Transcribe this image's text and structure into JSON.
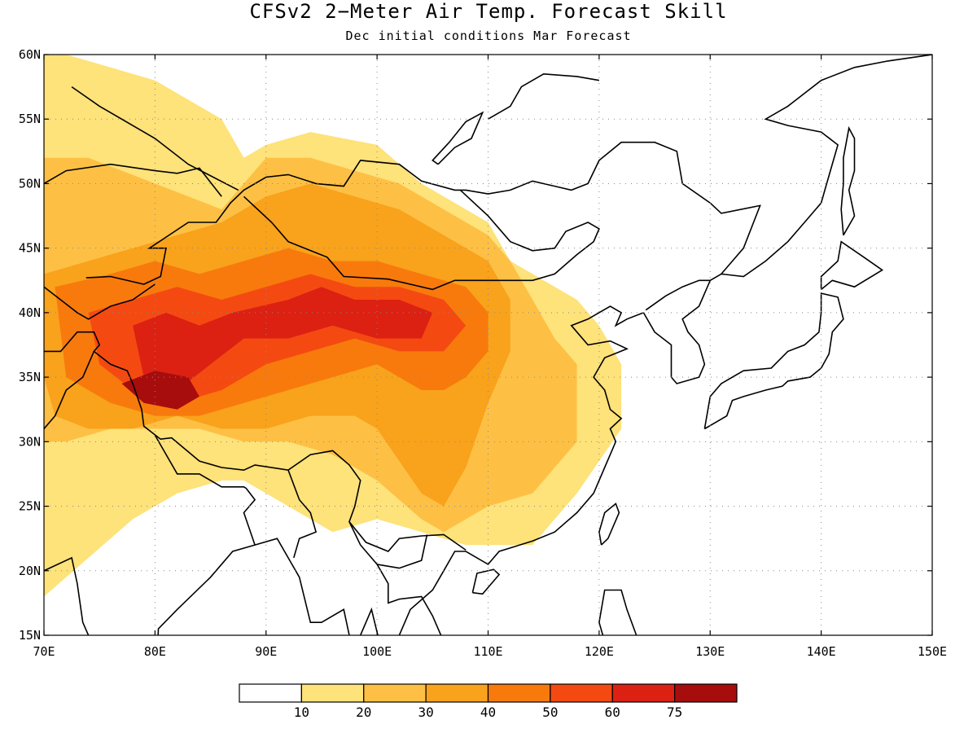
{
  "title": "CFSv2 2−Meter Air Temp. Forecast Skill",
  "subtitle": "Dec initial conditions  Mar Forecast",
  "map": {
    "lon_range": [
      70,
      150
    ],
    "lat_range": [
      15,
      60
    ],
    "lon_ticks": [
      "70E",
      "80E",
      "90E",
      "100E",
      "110E",
      "120E",
      "130E",
      "140E",
      "150E"
    ],
    "lat_ticks": [
      "15N",
      "20N",
      "25N",
      "30N",
      "35N",
      "40N",
      "45N",
      "50N",
      "55N",
      "60N"
    ],
    "grid": true
  },
  "colorbar": {
    "colors": [
      "#ffffff",
      "#fee27a",
      "#fdc045",
      "#f9a21b",
      "#f87a0c",
      "#f44a12",
      "#dc2113",
      "#a80d0d"
    ],
    "labels": [
      "10",
      "20",
      "30",
      "40",
      "50",
      "60",
      "75"
    ]
  },
  "chart_data": {
    "type": "heatmap",
    "title": "CFSv2 2−Meter Air Temp. Forecast Skill",
    "subtitle": "Dec initial conditions  Mar Forecast",
    "xlim": [
      70,
      150
    ],
    "ylim": [
      15,
      60
    ],
    "levels": [
      10,
      20,
      30,
      40,
      50,
      60,
      75
    ],
    "regions": [
      {
        "level": 10,
        "lon": [
          70,
          72,
          76,
          80,
          84,
          86,
          88,
          90,
          94,
          100,
          104,
          110,
          112,
          118,
          120,
          122,
          122,
          118,
          114,
          108,
          104,
          100,
          96,
          92,
          88,
          86,
          82,
          78,
          74,
          70
        ],
        "lat": [
          60,
          60,
          59,
          58,
          56,
          55,
          52,
          53,
          54,
          53,
          50,
          47,
          44,
          41,
          39,
          36,
          31,
          26,
          22,
          22,
          23,
          24,
          23,
          25,
          27,
          27,
          26,
          24,
          21,
          18
        ]
      },
      {
        "level": 20,
        "lon": [
          70,
          74,
          80,
          86,
          90,
          94,
          98,
          102,
          106,
          110,
          112,
          114,
          116,
          118,
          118,
          114,
          110,
          106,
          104,
          100,
          98,
          96,
          92,
          88,
          84,
          80,
          76,
          72,
          70
        ],
        "lat": [
          52,
          52,
          50,
          48,
          52,
          52,
          51,
          50,
          48,
          46,
          44,
          41,
          38,
          36,
          30,
          26,
          25,
          23,
          24,
          27,
          28,
          29,
          30,
          30,
          31,
          31,
          31,
          30,
          30
        ]
      },
      {
        "level": 30,
        "lon": [
          70,
          74,
          78,
          82,
          86,
          90,
          94,
          98,
          102,
          106,
          110,
          112,
          112,
          110,
          108,
          106,
          104,
          100,
          98,
          94,
          90,
          86,
          82,
          78,
          74,
          71,
          70
        ],
        "lat": [
          43,
          44,
          45,
          46,
          47,
          49,
          50,
          49,
          48,
          46,
          44,
          41,
          37,
          33,
          28,
          25,
          26,
          31,
          32,
          32,
          31,
          31,
          32,
          31,
          31,
          32,
          35
        ]
      },
      {
        "level": 40,
        "lon": [
          71,
          76,
          80,
          84,
          88,
          92,
          96,
          100,
          104,
          108,
          110,
          110,
          108,
          106,
          104,
          100,
          96,
          92,
          88,
          84,
          80,
          76,
          72
        ],
        "lat": [
          42,
          43,
          44,
          43,
          44,
          45,
          44,
          44,
          43,
          42,
          40,
          37,
          35,
          34,
          34,
          36,
          35,
          34,
          33,
          32,
          32,
          33,
          35
        ]
      },
      {
        "level": 50,
        "lon": [
          74,
          78,
          82,
          86,
          90,
          94,
          98,
          102,
          106,
          108,
          106,
          102,
          98,
          94,
          90,
          86,
          82,
          78,
          75
        ],
        "lat": [
          40,
          41,
          42,
          41,
          42,
          43,
          42,
          42,
          41,
          39,
          37,
          37,
          38,
          37,
          36,
          34,
          33,
          34,
          36
        ]
      },
      {
        "level": 60,
        "lon": [
          78,
          81,
          84,
          87,
          92,
          95,
          98,
          102,
          105,
          104,
          100,
          96,
          92,
          88,
          85,
          82,
          79
        ],
        "lat": [
          39,
          40,
          39,
          40,
          41,
          42,
          41,
          41,
          40,
          38,
          38,
          39,
          38,
          38,
          36,
          34,
          35
        ]
      },
      {
        "level": 75,
        "lon": [
          77,
          80,
          83,
          84,
          82,
          79
        ],
        "lat": [
          34.5,
          35.5,
          35,
          33.5,
          32.5,
          33
        ]
      }
    ]
  }
}
